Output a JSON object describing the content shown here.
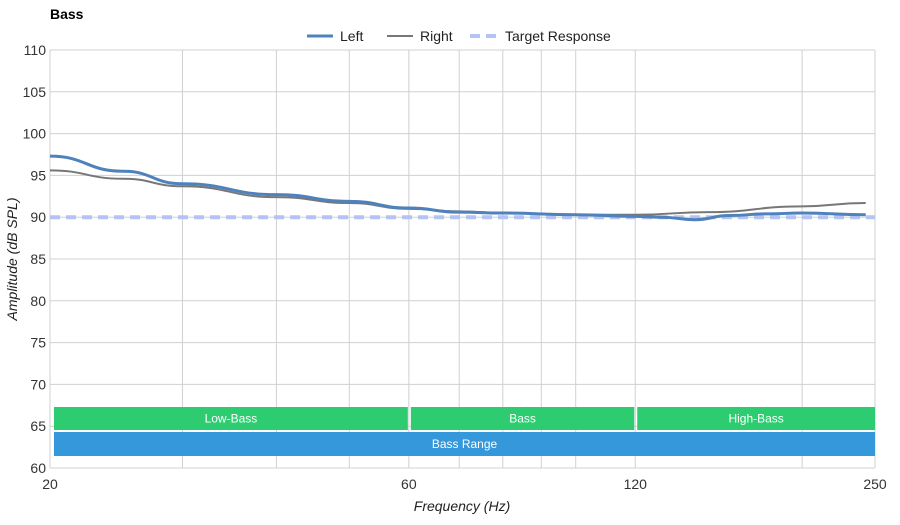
{
  "chart_data": {
    "type": "line",
    "title": "Bass",
    "xlabel": "Frequency (Hz)",
    "ylabel": "Amplitude (dB SPL)",
    "xscale": "log",
    "xlim": [
      20,
      250
    ],
    "ylim": [
      60,
      110
    ],
    "xticks": [
      20,
      60,
      120,
      250
    ],
    "yticks": [
      60,
      65,
      70,
      75,
      80,
      85,
      90,
      95,
      100,
      105,
      110
    ],
    "xgrid": [
      20,
      30,
      40,
      50,
      60,
      70,
      80,
      90,
      100,
      120,
      200,
      250
    ],
    "grid": true,
    "legend_position": "top-center",
    "series": [
      {
        "name": "Left",
        "color": "#4f81bd",
        "style": "solid",
        "x": [
          20,
          25,
          30,
          40,
          50,
          60,
          70,
          80,
          100,
          120,
          130,
          144,
          160,
          180,
          200,
          243
        ],
        "y": [
          97.3,
          95.5,
          94.0,
          92.7,
          91.9,
          91.1,
          90.6,
          90.5,
          90.3,
          90.1,
          90.0,
          89.7,
          90.2,
          90.4,
          90.5,
          90.3
        ]
      },
      {
        "name": "Right",
        "color": "#777777",
        "style": "solid",
        "x": [
          20,
          25,
          30,
          40,
          50,
          60,
          70,
          80,
          100,
          120,
          150,
          200,
          243
        ],
        "y": [
          95.6,
          94.6,
          93.7,
          92.4,
          91.7,
          91.0,
          90.7,
          90.5,
          90.3,
          90.3,
          90.6,
          91.3,
          91.7
        ]
      },
      {
        "name": "Target Response",
        "color": "#b3c3f2",
        "style": "dashed",
        "x": [
          20,
          250
        ],
        "y": [
          90,
          90
        ]
      }
    ],
    "bands": [
      {
        "label": "Low-Bass",
        "from": 20,
        "to": 60,
        "color": "#2ecc71",
        "row": 0
      },
      {
        "label": "Bass",
        "from": 60,
        "to": 120,
        "color": "#2ecc71",
        "row": 0
      },
      {
        "label": "High-Bass",
        "from": 120,
        "to": 250,
        "color": "#2ecc71",
        "row": 0
      },
      {
        "label": "Bass Range",
        "from": 20,
        "to": 250,
        "color": "#3498db",
        "row": 1
      }
    ]
  }
}
